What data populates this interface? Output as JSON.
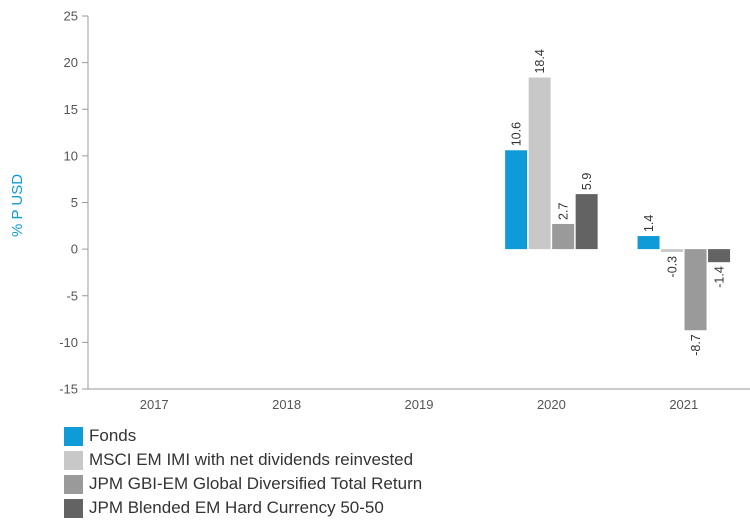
{
  "chart_data": {
    "type": "bar",
    "ylabel": "% P USD",
    "ylim": [
      -15,
      25
    ],
    "yticks": [
      -15,
      -10,
      -5,
      0,
      5,
      10,
      15,
      20,
      25
    ],
    "categories": [
      "2017",
      "2018",
      "2019",
      "2020",
      "2021"
    ],
    "series": [
      {
        "name": "Fonds",
        "color": "#0f9ad8",
        "values": [
          null,
          null,
          null,
          10.6,
          1.4
        ],
        "labels": [
          "",
          "",
          "",
          "10.6",
          "1.4"
        ]
      },
      {
        "name": "MSCI EM IMI with net dividends reinvested",
        "color": "#c8c8c8",
        "values": [
          null,
          null,
          null,
          18.4,
          -0.3
        ],
        "labels": [
          "",
          "",
          "",
          "18.4",
          "-0.3"
        ]
      },
      {
        "name": "JPM GBI-EM Global Diversified Total Return",
        "color": "#9a9a9a",
        "values": [
          null,
          null,
          null,
          2.7,
          -8.7
        ],
        "labels": [
          "",
          "",
          "",
          "2.7",
          "-8.7"
        ]
      },
      {
        "name": "JPM Blended EM Hard Currency 50-50",
        "color": "#636363",
        "values": [
          null,
          null,
          null,
          5.9,
          -1.4
        ],
        "labels": [
          "",
          "",
          "",
          "5.9",
          "-1.4"
        ]
      }
    ],
    "grid": false,
    "legend_position": "bottom-left"
  },
  "colors": {
    "ylabel": "#0f9ad8",
    "axis": "#999999"
  }
}
